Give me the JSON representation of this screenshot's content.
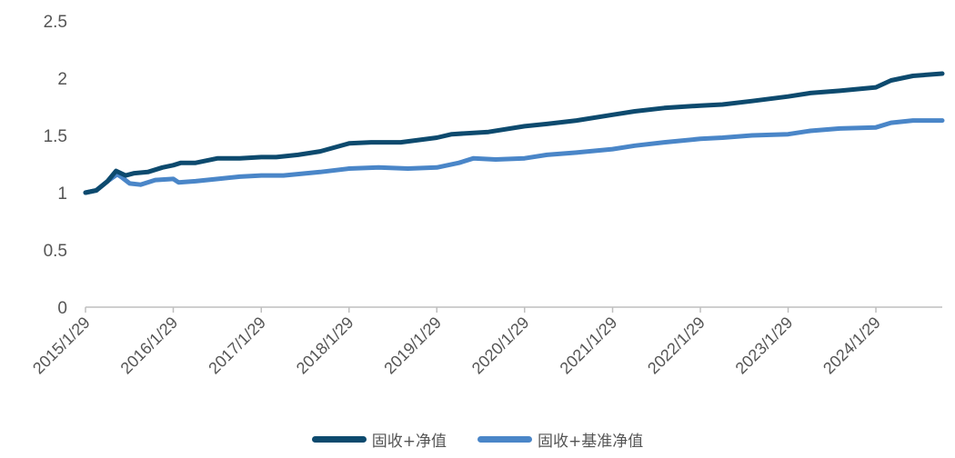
{
  "chart_data": {
    "type": "line",
    "title": "",
    "xlabel": "",
    "ylabel": "",
    "ylim": [
      0,
      2.5
    ],
    "yticks": [
      "0",
      "0.5",
      "1",
      "1.5",
      "2",
      "2.5"
    ],
    "categories": [
      "2015/1/29",
      "2016/1/29",
      "2017/1/29",
      "2018/1/29",
      "2019/1/29",
      "2020/1/29",
      "2021/1/29",
      "2022/1/29",
      "2023/1/29",
      "2024/1/29"
    ],
    "x_range": [
      "2015/1/29",
      "2024/10/31"
    ],
    "grid": false,
    "legend_position": "bottom",
    "series": [
      {
        "name": "固收+净值",
        "color": "#0d4a6e",
        "points": [
          [
            "2015/1/29",
            1.0
          ],
          [
            "2015/3/15",
            1.02
          ],
          [
            "2015/5/1",
            1.1
          ],
          [
            "2015/6/5",
            1.19
          ],
          [
            "2015/6/25",
            1.17
          ],
          [
            "2015/7/15",
            1.15
          ],
          [
            "2015/8/20",
            1.17
          ],
          [
            "2015/10/15",
            1.18
          ],
          [
            "2015/12/15",
            1.22
          ],
          [
            "2016/1/29",
            1.24
          ],
          [
            "2016/3/1",
            1.26
          ],
          [
            "2016/5/1",
            1.26
          ],
          [
            "2016/8/1",
            1.3
          ],
          [
            "2016/11/1",
            1.3
          ],
          [
            "2017/1/29",
            1.31
          ],
          [
            "2017/4/1",
            1.31
          ],
          [
            "2017/7/1",
            1.33
          ],
          [
            "2017/10/1",
            1.36
          ],
          [
            "2018/1/29",
            1.43
          ],
          [
            "2018/5/1",
            1.44
          ],
          [
            "2018/9/1",
            1.44
          ],
          [
            "2019/1/29",
            1.48
          ],
          [
            "2019/4/1",
            1.51
          ],
          [
            "2019/9/1",
            1.53
          ],
          [
            "2020/1/29",
            1.58
          ],
          [
            "2020/5/1",
            1.6
          ],
          [
            "2020/9/1",
            1.63
          ],
          [
            "2021/1/29",
            1.68
          ],
          [
            "2021/5/1",
            1.71
          ],
          [
            "2021/9/1",
            1.74
          ],
          [
            "2022/1/29",
            1.76
          ],
          [
            "2022/5/1",
            1.77
          ],
          [
            "2022/9/1",
            1.8
          ],
          [
            "2023/1/29",
            1.84
          ],
          [
            "2023/5/1",
            1.87
          ],
          [
            "2023/9/1",
            1.89
          ],
          [
            "2024/1/29",
            1.92
          ],
          [
            "2024/4/1",
            1.98
          ],
          [
            "2024/7/1",
            2.02
          ],
          [
            "2024/10/31",
            2.04
          ]
        ]
      },
      {
        "name": "固收+基准净值",
        "color": "#4a86c8",
        "points": [
          [
            "2015/1/29",
            1.0
          ],
          [
            "2015/3/15",
            1.02
          ],
          [
            "2015/5/1",
            1.1
          ],
          [
            "2015/6/10",
            1.16
          ],
          [
            "2015/7/1",
            1.13
          ],
          [
            "2015/8/1",
            1.08
          ],
          [
            "2015/9/15",
            1.07
          ],
          [
            "2015/11/15",
            1.11
          ],
          [
            "2016/1/29",
            1.12
          ],
          [
            "2016/2/20",
            1.09
          ],
          [
            "2016/5/1",
            1.1
          ],
          [
            "2016/8/1",
            1.12
          ],
          [
            "2016/11/1",
            1.14
          ],
          [
            "2017/1/29",
            1.15
          ],
          [
            "2017/5/1",
            1.15
          ],
          [
            "2017/10/1",
            1.18
          ],
          [
            "2018/1/29",
            1.21
          ],
          [
            "2018/6/1",
            1.22
          ],
          [
            "2018/10/1",
            1.21
          ],
          [
            "2019/1/29",
            1.22
          ],
          [
            "2019/5/1",
            1.26
          ],
          [
            "2019/7/1",
            1.3
          ],
          [
            "2019/10/1",
            1.29
          ],
          [
            "2020/1/29",
            1.3
          ],
          [
            "2020/5/1",
            1.33
          ],
          [
            "2020/9/1",
            1.35
          ],
          [
            "2021/1/29",
            1.38
          ],
          [
            "2021/5/1",
            1.41
          ],
          [
            "2021/9/1",
            1.44
          ],
          [
            "2022/1/29",
            1.47
          ],
          [
            "2022/5/1",
            1.48
          ],
          [
            "2022/9/1",
            1.5
          ],
          [
            "2023/1/29",
            1.51
          ],
          [
            "2023/5/1",
            1.54
          ],
          [
            "2023/9/1",
            1.56
          ],
          [
            "2024/1/29",
            1.57
          ],
          [
            "2024/4/1",
            1.61
          ],
          [
            "2024/7/1",
            1.63
          ],
          [
            "2024/10/31",
            1.63
          ]
        ]
      }
    ]
  }
}
